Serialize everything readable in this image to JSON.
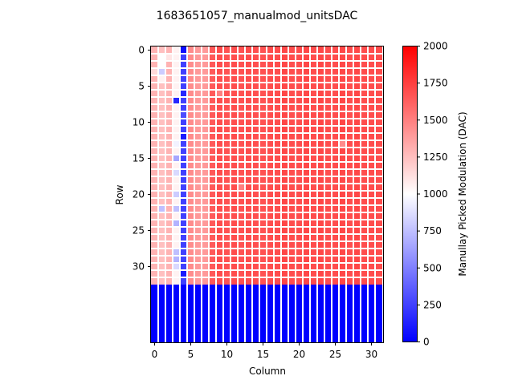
{
  "chart_data": {
    "type": "heatmap",
    "title": "1683651057_manualmod_unitsDAC",
    "xlabel": "Column",
    "ylabel": "Row",
    "colorbar_label": "Manullay Picked Modulation (DAC)",
    "colormap": "bwr",
    "vmin": 0,
    "vmax": 2000,
    "n_rows": 41,
    "n_cols": 32,
    "data_rows": 33,
    "xticks": [
      0,
      5,
      10,
      15,
      20,
      25,
      30
    ],
    "yticks": [
      0,
      5,
      10,
      15,
      20,
      25,
      30
    ],
    "colorbar_ticks": [
      0,
      250,
      500,
      750,
      1000,
      1250,
      1500,
      1750,
      2000
    ],
    "row_template_values": [
      1300,
      1250,
      1300,
      1050,
      250,
      1450,
      1400,
      1400,
      1650,
      1700,
      1680,
      1700,
      1680,
      1700,
      1690,
      1680,
      1700,
      1700,
      1720,
      1700,
      1700,
      1720,
      1700,
      1720,
      1700,
      1700,
      1720,
      1700,
      1720,
      1700,
      1700,
      1700
    ],
    "overrides": [
      {
        "row": 0,
        "col": 4,
        "value": 50
      },
      {
        "row": 1,
        "col": 1,
        "value": 1000
      },
      {
        "row": 1,
        "col": 2,
        "value": 1100
      },
      {
        "row": 2,
        "col": 1,
        "value": 1000
      },
      {
        "row": 3,
        "col": 1,
        "value": 800
      },
      {
        "row": 3,
        "col": 0,
        "value": 1150
      },
      {
        "row": 4,
        "col": 1,
        "value": 1050
      },
      {
        "row": 6,
        "col": 4,
        "value": 150
      },
      {
        "row": 7,
        "col": 3,
        "value": 150
      },
      {
        "row": 9,
        "col": 4,
        "value": 300
      },
      {
        "row": 12,
        "col": 4,
        "value": 100
      },
      {
        "row": 13,
        "col": 3,
        "value": 950
      },
      {
        "row": 15,
        "col": 3,
        "value": 650
      },
      {
        "row": 17,
        "col": 3,
        "value": 850
      },
      {
        "row": 20,
        "col": 3,
        "value": 800
      },
      {
        "row": 22,
        "col": 1,
        "value": 750
      },
      {
        "row": 22,
        "col": 3,
        "value": 750
      },
      {
        "row": 24,
        "col": 3,
        "value": 700
      },
      {
        "row": 28,
        "col": 3,
        "value": 750
      },
      {
        "row": 29,
        "col": 3,
        "value": 700
      },
      {
        "row": 30,
        "col": 3,
        "value": 850
      },
      {
        "row": 31,
        "col": 4,
        "value": 100
      },
      {
        "row": 13,
        "col": 26,
        "value": 1450
      },
      {
        "row": 6,
        "col": 9,
        "value": 1500
      },
      {
        "row": 19,
        "col": 12,
        "value": 1500
      }
    ],
    "below_data_value": 0
  }
}
